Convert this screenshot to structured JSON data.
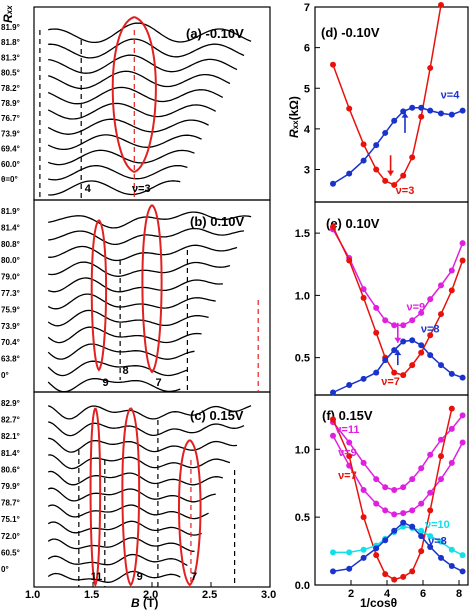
{
  "colors": {
    "red": "#e8120c",
    "blue": "#1a33cc",
    "magenta": "#e020e0",
    "cyan": "#12e0e8",
    "black": "#000000",
    "line_red": "#e32020"
  },
  "left_axis": {
    "ylabel": "R",
    "ylabel_sub": "xx",
    "xlabel": "B",
    "xlabel_unit": " (T)",
    "xlim": [
      1.0,
      3.0
    ],
    "xticks": [
      "1.0",
      "1.5",
      "2.0",
      "2.5",
      "3.0"
    ]
  },
  "right_axis": {
    "ylabel": "R",
    "ylabel_sub": "xx",
    "ylabel_unit": "(kΩ)",
    "xlabel": "1/cosθ",
    "xlim": [
      0,
      8.5
    ],
    "xticks": [
      "2",
      "4",
      "6",
      "8"
    ]
  },
  "panels": {
    "a": {
      "title": "(a)  -0.10V",
      "angle_labels": [
        "81.9°",
        "81.8°",
        "81.3°",
        "80.5°",
        "78.2°",
        "78.9°",
        "76.7°",
        "73.9°",
        "69.4°",
        "60.0°",
        "θ=0°"
      ],
      "nu_labels": [
        "4",
        "ν=3"
      ]
    },
    "b": {
      "title": "(b)   0.10V",
      "angle_labels": [
        "81.9°",
        "81.4°",
        "80.8°",
        "80.0°",
        "79.0°",
        "77.3°",
        "75.9°",
        "73.9°",
        "70.4°",
        "63.8°",
        "0°"
      ],
      "nu_labels": [
        "9",
        "8",
        "7"
      ]
    },
    "c": {
      "title": "(c)  0.15V",
      "angle_labels": [
        "82.9°",
        "82.7°",
        "82.1°",
        "81.4°",
        "80.6°",
        "79.9°",
        "78.7°",
        "75.1°",
        "72.0°",
        "60.5°",
        "0°"
      ],
      "nu_labels": [
        "11",
        "9",
        "7"
      ]
    },
    "d": {
      "title": "(d)  -0.10V",
      "yticks": [
        "3",
        "4",
        "5",
        "6",
        "7"
      ]
    },
    "e": {
      "title": "(e)  0.10V",
      "yticks": [
        "0.5",
        "1.0",
        "1.5"
      ]
    },
    "f": {
      "title": "(f)   0.15V",
      "yticks": [
        "0.0",
        "0.5",
        "1.0"
      ]
    }
  },
  "chart_data": [
    {
      "type": "line",
      "panel": "d",
      "title": "(d)  -0.10V",
      "xlabel": "1/cosθ",
      "ylabel": "Rxx(kΩ)",
      "xlim": [
        0,
        8.5
      ],
      "ylim": [
        2.2,
        7.0
      ],
      "series": [
        {
          "name": "ν=3",
          "color": "red",
          "x": [
            1.0,
            1.9,
            2.7,
            3.4,
            3.9,
            4.4,
            4.9,
            5.4,
            5.9,
            6.4,
            7.0
          ],
          "y": [
            5.58,
            4.5,
            3.62,
            3.0,
            2.72,
            2.62,
            2.85,
            3.3,
            4.3,
            5.5,
            7.05
          ]
        },
        {
          "name": "ν=4",
          "color": "blue",
          "x": [
            1.0,
            1.9,
            2.7,
            3.4,
            3.9,
            4.4,
            4.9,
            5.4,
            5.9,
            6.4,
            7.0,
            7.6,
            8.2
          ],
          "y": [
            2.65,
            2.9,
            3.22,
            3.6,
            3.9,
            4.2,
            4.43,
            4.52,
            4.52,
            4.45,
            4.38,
            4.35,
            4.45
          ]
        }
      ],
      "annotations": [
        "ν=4",
        "ν=3"
      ]
    },
    {
      "type": "line",
      "panel": "e",
      "title": "(e)  0.10V",
      "ylim": [
        0.2,
        1.75
      ],
      "series": [
        {
          "name": "ν=9",
          "color": "magenta",
          "x": [
            1.0,
            1.9,
            2.7,
            3.4,
            3.9,
            4.4,
            4.9,
            5.4,
            5.9,
            6.4,
            7.0,
            7.6,
            8.2
          ],
          "y": [
            1.53,
            1.3,
            1.05,
            0.9,
            0.8,
            0.76,
            0.76,
            0.8,
            0.86,
            0.97,
            1.08,
            1.2,
            1.42
          ]
        },
        {
          "name": "ν=7",
          "color": "red",
          "x": [
            1.0,
            1.9,
            2.7,
            3.4,
            3.9,
            4.4,
            4.9,
            5.4,
            5.9,
            6.4,
            7.0,
            7.6,
            8.2
          ],
          "y": [
            1.55,
            1.28,
            0.98,
            0.7,
            0.5,
            0.38,
            0.36,
            0.44,
            0.54,
            0.68,
            0.85,
            1.04,
            1.28
          ]
        },
        {
          "name": "ν=8",
          "color": "blue",
          "x": [
            1.0,
            1.9,
            2.7,
            3.4,
            3.9,
            4.4,
            4.9,
            5.4,
            5.9,
            6.4,
            7.0,
            7.6,
            8.2
          ],
          "y": [
            0.22,
            0.28,
            0.33,
            0.38,
            0.48,
            0.56,
            0.63,
            0.64,
            0.6,
            0.52,
            0.44,
            0.37,
            0.34
          ]
        }
      ],
      "annotations": [
        "ν=9",
        "ν=8",
        "ν=7"
      ]
    },
    {
      "type": "line",
      "panel": "f",
      "title": "(f)   0.15V",
      "xlabel": "1/cosθ",
      "ylim": [
        0.0,
        1.4
      ],
      "series": [
        {
          "name": "ν=11",
          "color": "magenta",
          "x": [
            1.0,
            1.9,
            2.7,
            3.4,
            3.9,
            4.4,
            4.9,
            5.4,
            5.9,
            6.4,
            7.0,
            7.6,
            8.2
          ],
          "y": [
            1.2,
            1.05,
            0.9,
            0.78,
            0.72,
            0.7,
            0.72,
            0.78,
            0.86,
            0.96,
            1.07,
            1.15,
            1.25
          ]
        },
        {
          "name": "ν=9",
          "color": "magenta",
          "x": [
            1.0,
            1.9,
            2.7,
            3.4,
            3.9,
            4.4,
            4.9,
            5.4,
            5.9,
            6.4,
            7.0,
            7.6,
            8.2
          ],
          "y": [
            1.1,
            0.88,
            0.7,
            0.6,
            0.55,
            0.52,
            0.53,
            0.55,
            0.6,
            0.68,
            0.78,
            0.9,
            1.05
          ]
        },
        {
          "name": "ν=7",
          "color": "red",
          "x": [
            1.0,
            1.9,
            2.7,
            3.4,
            3.9,
            4.4,
            4.9,
            5.4,
            5.9,
            6.4,
            7.0,
            7.6
          ],
          "y": [
            1.22,
            0.95,
            0.5,
            0.22,
            0.08,
            0.04,
            0.06,
            0.1,
            0.25,
            0.55,
            0.95,
            1.3
          ]
        },
        {
          "name": "ν=10",
          "color": "cyan",
          "x": [
            1.0,
            1.9,
            2.7,
            3.4,
            3.9,
            4.4,
            4.9,
            5.4,
            5.9,
            6.4,
            7.0,
            7.6,
            8.2
          ],
          "y": [
            0.24,
            0.24,
            0.26,
            0.29,
            0.34,
            0.39,
            0.43,
            0.42,
            0.4,
            0.36,
            0.32,
            0.26,
            0.22
          ]
        },
        {
          "name": "ν=8",
          "color": "blue",
          "x": [
            1.0,
            1.9,
            2.7,
            3.4,
            3.9,
            4.4,
            4.9,
            5.4,
            5.9,
            6.4,
            7.0,
            7.6,
            8.2
          ],
          "y": [
            0.1,
            0.12,
            0.2,
            0.27,
            0.33,
            0.4,
            0.46,
            0.43,
            0.36,
            0.28,
            0.2,
            0.14,
            0.1
          ]
        }
      ],
      "annotations": [
        "ν=11",
        "ν=9",
        "ν=7",
        "ν=10",
        "ν=8"
      ]
    }
  ]
}
